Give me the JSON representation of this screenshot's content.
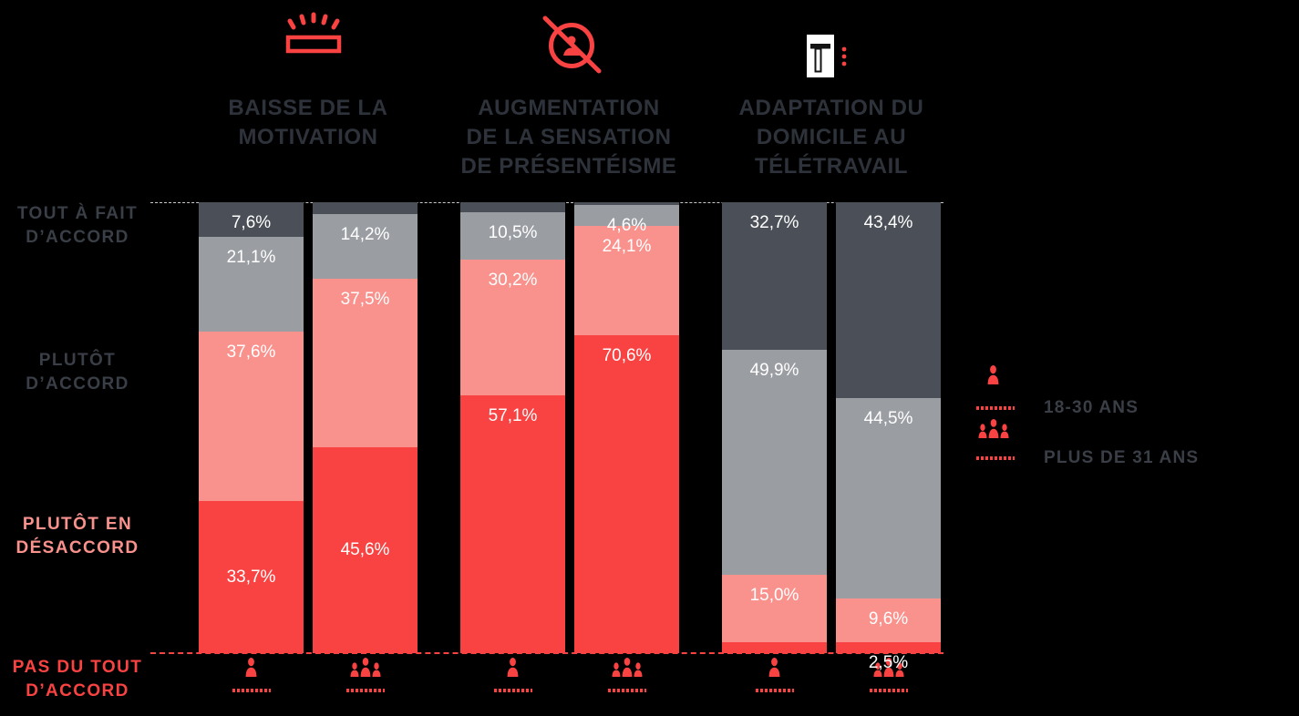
{
  "colors": {
    "background": "#000000",
    "accent_red": "#F94343",
    "salmon": "#F9918C",
    "mid_gray": "#9A9DA2",
    "dark_gray": "#4B4F57",
    "header_text": "#2E323A",
    "axis_text": "#3A3E46",
    "value_label_text": "#FFFFFF",
    "top_gridline": "#C9C9C9"
  },
  "groups": [
    {
      "title": "BAISSE DE LA MOTIVATION",
      "icon": "low-battery-icon"
    },
    {
      "title": "AUGMENTATION DE LA SENSATION DE PRÉSENTÉISME",
      "icon": "eye-crossed-icon"
    },
    {
      "title": "ADAPTATION DU DOMICILE AU TÉLÉTRAVAIL",
      "icon": "desk-icon"
    }
  ],
  "row_labels": [
    {
      "text": "TOUT À FAIT D’ACCORD",
      "color": "#3A3E46"
    },
    {
      "text": "PLUTÔT D’ACCORD",
      "color": "#3A3E46"
    },
    {
      "text": "PLUTÔT EN DÉSACCORD",
      "color": "#F9918C"
    },
    {
      "text": "PAS DU TOUT D’ACCORD",
      "color": "#F94343"
    }
  ],
  "legend": {
    "items": [
      {
        "label": "18-30 ANS",
        "icon": "person-single-icon"
      },
      {
        "label": "PLUS DE 31 ANS",
        "icon": "person-group-icon"
      }
    ]
  },
  "chart_data": {
    "type": "bar",
    "stacked": true,
    "orientation": "vertical",
    "unit": "percent",
    "ymax": 100,
    "grid": "dashed top and bottom lines only",
    "legend_position": "right",
    "categories": [
      "BAISSE DE LA MOTIVATION",
      "AUGMENTATION DE LA SENSATION DE PRÉSENTÉISME",
      "ADAPTATION DU DOMICILE AU TÉLÉTRAVAIL"
    ],
    "stack_levels_top_to_bottom": [
      "TOUT À FAIT D’ACCORD",
      "PLUTÔT D’ACCORD",
      "PLUTÔT EN DÉSACCORD",
      "PAS DU TOUT D’ACCORD"
    ],
    "level_colors": {
      "TOUT À FAIT D’ACCORD": "#4B4F57",
      "PLUTÔT D’ACCORD": "#9A9DA2",
      "PLUTÔT EN DÉSACCORD": "#F9918C",
      "PAS DU TOUT D’ACCORD": "#F94343"
    },
    "bars": [
      {
        "category": 0,
        "age_group": "18-30 ANS",
        "segments": [
          {
            "level": "TOUT À FAIT D’ACCORD",
            "value": 7.6,
            "label": "7,6%",
            "label_pos": "top"
          },
          {
            "level": "PLUTÔT D’ACCORD",
            "value": 21.1,
            "label": "21,1%",
            "label_pos": "top"
          },
          {
            "level": "PLUTÔT EN DÉSACCORD",
            "value": 37.6,
            "label": "37,6%",
            "label_pos": "top"
          },
          {
            "level": "PAS DU TOUT D’ACCORD",
            "value": 33.7,
            "label": "33,7%",
            "label_pos": "center"
          }
        ]
      },
      {
        "category": 0,
        "age_group": "PLUS DE 31 ANS",
        "segments": [
          {
            "level": "TOUT À FAIT D’ACCORD",
            "value": 2.7,
            "label": ""
          },
          {
            "level": "PLUTÔT D’ACCORD",
            "value": 14.2,
            "label": "14,2%",
            "label_pos": "top"
          },
          {
            "level": "PLUTÔT EN DÉSACCORD",
            "value": 37.5,
            "label": "37,5%",
            "label_pos": "top"
          },
          {
            "level": "PAS DU TOUT D’ACCORD",
            "value": 45.6,
            "label": "45,6%",
            "label_pos": "center"
          }
        ]
      },
      {
        "category": 1,
        "age_group": "18-30 ANS",
        "segments": [
          {
            "level": "TOUT À FAIT D’ACCORD",
            "value": 2.2,
            "label": ""
          },
          {
            "level": "PLUTÔT D’ACCORD",
            "value": 10.5,
            "label": "10,5%",
            "label_pos": "top"
          },
          {
            "level": "PLUTÔT EN DÉSACCORD",
            "value": 30.2,
            "label": "30,2%",
            "label_pos": "top"
          },
          {
            "level": "PAS DU TOUT D’ACCORD",
            "value": 57.1,
            "label": "57,1%",
            "label_pos": "top"
          }
        ]
      },
      {
        "category": 1,
        "age_group": "PLUS DE 31 ANS",
        "segments": [
          {
            "level": "TOUT À FAIT D’ACCORD",
            "value": 0.7,
            "label": ""
          },
          {
            "level": "PLUTÔT D’ACCORD",
            "value": 4.6,
            "label": "4,6%",
            "label_pos": "top"
          },
          {
            "level": "PLUTÔT EN DÉSACCORD",
            "value": 24.1,
            "label": "24,1%",
            "label_pos": "top"
          },
          {
            "level": "PAS DU TOUT D’ACCORD",
            "value": 70.6,
            "label": "70,6%",
            "label_pos": "top"
          }
        ]
      },
      {
        "category": 2,
        "age_group": "18-30 ANS",
        "segments": [
          {
            "level": "TOUT À FAIT D’ACCORD",
            "value": 32.7,
            "label": "32,7%",
            "label_pos": "top"
          },
          {
            "level": "PLUTÔT D’ACCORD",
            "value": 49.9,
            "label": "49,9%",
            "label_pos": "top"
          },
          {
            "level": "PLUTÔT EN DÉSACCORD",
            "value": 15.0,
            "label": "15,0%",
            "label_pos": "top"
          },
          {
            "level": "PAS DU TOUT D’ACCORD",
            "value": 2.4,
            "label": ""
          }
        ]
      },
      {
        "category": 2,
        "age_group": "PLUS DE 31 ANS",
        "segments": [
          {
            "level": "TOUT À FAIT D’ACCORD",
            "value": 43.4,
            "label": "43,4%",
            "label_pos": "top"
          },
          {
            "level": "PLUTÔT D’ACCORD",
            "value": 44.5,
            "label": "44,5%",
            "label_pos": "top"
          },
          {
            "level": "PLUTÔT EN DÉSACCORD",
            "value": 9.6,
            "label": "9,6%",
            "label_pos": "top"
          },
          {
            "level": "PAS DU TOUT D’ACCORD",
            "value": 2.5,
            "label": "2,5%",
            "label_pos": "top"
          }
        ]
      }
    ]
  }
}
